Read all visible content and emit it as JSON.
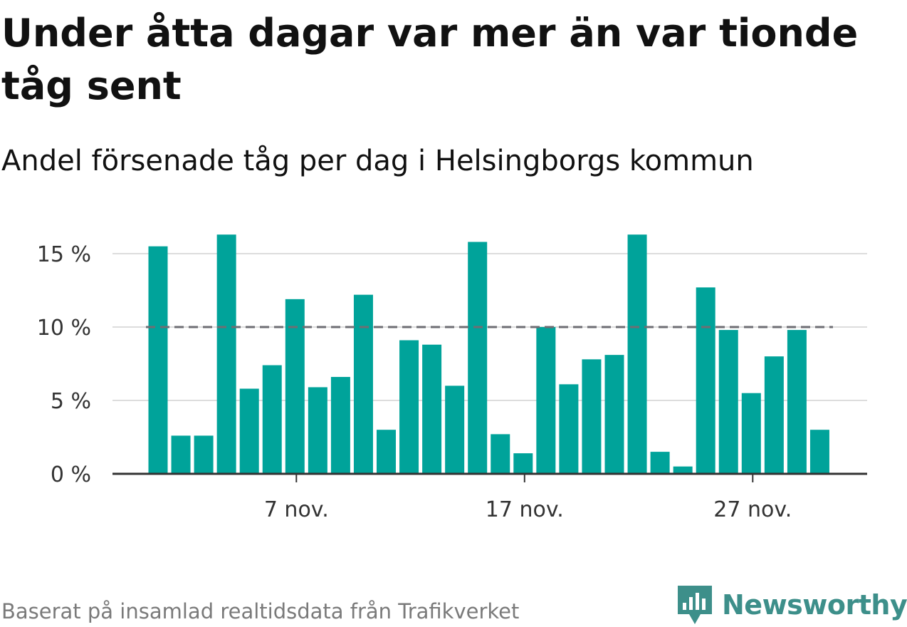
{
  "header": {
    "title": "Under åtta dagar var mer än var tionde tåg sent",
    "subtitle": "Andel försenade tåg per dag i Helsingborgs kommun"
  },
  "footer": {
    "source": "Baserat på insamlad realtidsdata från Trafikverket",
    "brand": "Newsworthy"
  },
  "colors": {
    "bar": "#00a39a",
    "reference_line": "#6e6e73",
    "grid": "#dddddd",
    "axis": "#333333",
    "brand": "#3d8f8a"
  },
  "icons": {
    "brand_logo": "newsworthy-logo-icon"
  },
  "chart_data": {
    "type": "bar",
    "x_start": "2024-11-01",
    "x_labels": [
      {
        "day": 7,
        "label": "7 nov."
      },
      {
        "day": 17,
        "label": "17 nov."
      },
      {
        "day": 27,
        "label": "27 nov."
      }
    ],
    "days": [
      1,
      2,
      3,
      4,
      5,
      6,
      7,
      8,
      9,
      10,
      11,
      12,
      13,
      14,
      15,
      16,
      17,
      18,
      19,
      20,
      21,
      22,
      23,
      24,
      25,
      26,
      27,
      28,
      29,
      30
    ],
    "values": [
      15.5,
      2.6,
      2.6,
      16.3,
      5.8,
      7.4,
      11.9,
      5.9,
      6.6,
      12.2,
      3.0,
      9.1,
      8.8,
      6.0,
      15.8,
      2.7,
      1.4,
      10.0,
      6.1,
      7.8,
      8.1,
      16.3,
      1.5,
      0.5,
      12.7,
      9.8,
      5.5,
      8.0,
      9.8,
      3.0
    ],
    "y_ticks": [
      {
        "value": 0,
        "label": "0 %"
      },
      {
        "value": 5,
        "label": "5 %"
      },
      {
        "value": 10,
        "label": "10 %"
      },
      {
        "value": 15,
        "label": "15 %"
      }
    ],
    "ylim": [
      0,
      16.3
    ],
    "reference_line": 10,
    "grid": true,
    "unit": "%"
  }
}
